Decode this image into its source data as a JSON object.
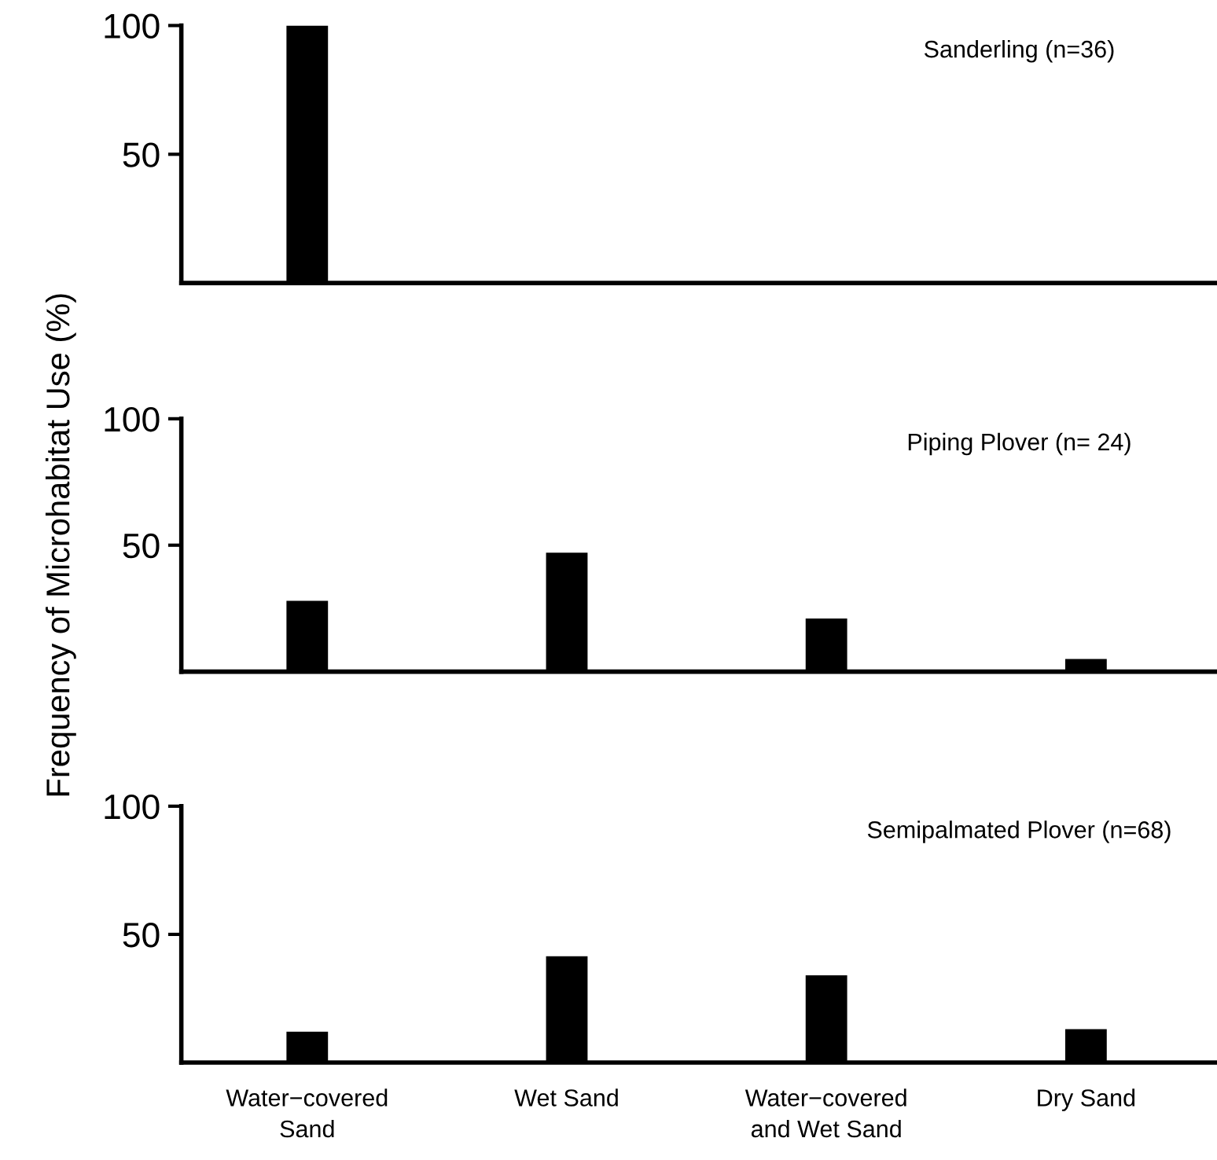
{
  "chart_data": [
    {
      "type": "bar",
      "title": "Sanderling (n=36)",
      "categories": [
        null,
        null,
        null,
        null
      ],
      "values": [
        100,
        0,
        0,
        0
      ],
      "color": "#000000",
      "ylim": [
        0,
        100
      ],
      "yticks": [
        50,
        100
      ],
      "tick_labels": "y"
    },
    {
      "type": "bar",
      "title": "Piping Plover (n= 24)",
      "ylabel": "Frequency of Microhabitat Use (%)",
      "categories": [
        null,
        null,
        null,
        null
      ],
      "values": [
        28,
        47,
        21,
        5
      ],
      "color": "#000000",
      "ylim": [
        0,
        100
      ],
      "yticks": [
        50,
        100
      ],
      "tick_labels": "y"
    },
    {
      "type": "bar",
      "title": "Semipalmated Plover (n=68)",
      "categories": [
        "Water−covered\nSand",
        "Wet Sand",
        "Water−covered\nand Wet Sand",
        "Dry Sand"
      ],
      "values": [
        12,
        41.5,
        34,
        13
      ],
      "color": "#000000",
      "ylim": [
        0,
        100
      ],
      "yticks": [
        50,
        100
      ]
    }
  ]
}
